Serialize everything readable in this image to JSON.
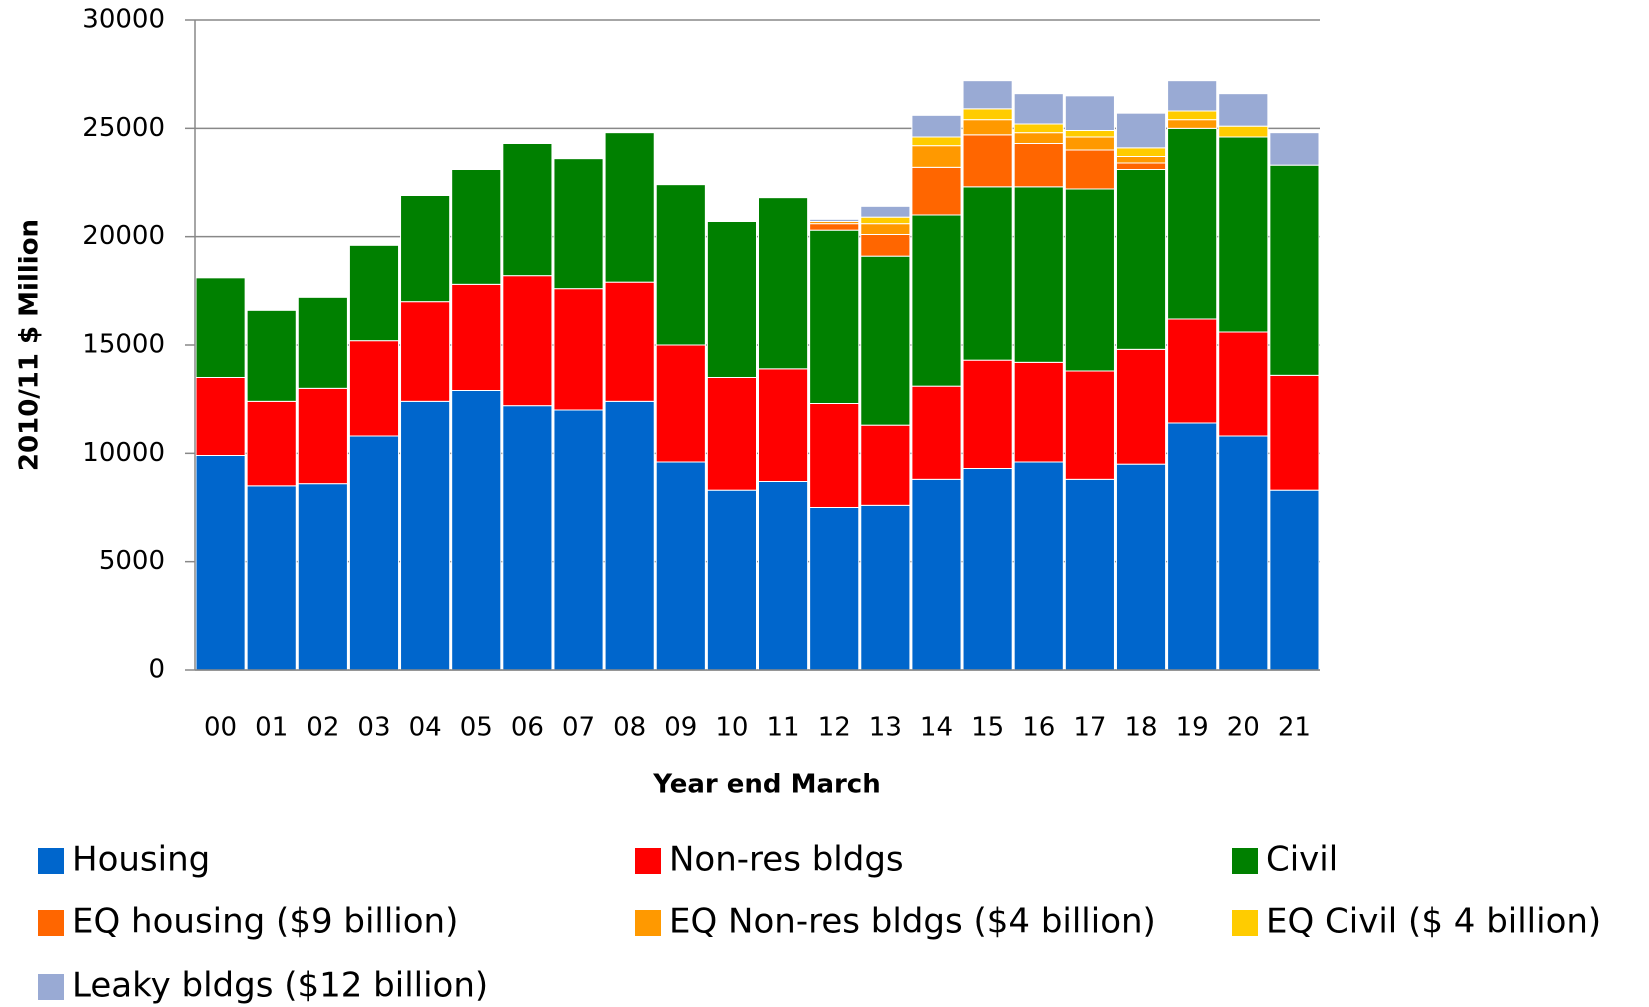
{
  "chart_data": {
    "type": "stacked_bar",
    "y_label": "2010/11 $ Million",
    "x_label": "Year end March",
    "categories": [
      "00",
      "01",
      "02",
      "03",
      "04",
      "05",
      "06",
      "07",
      "08",
      "09",
      "10",
      "11",
      "12",
      "13",
      "14",
      "15",
      "16",
      "17",
      "18",
      "19",
      "20",
      "21"
    ],
    "series": [
      {
        "name": "Housing",
        "color": "#0066cc",
        "values": [
          9900,
          8500,
          8600,
          10800,
          12400,
          12900,
          12200,
          12000,
          12400,
          9600,
          8300,
          8700,
          7500,
          7600,
          8800,
          9300,
          9600,
          8800,
          9500,
          11400,
          10800,
          8300
        ]
      },
      {
        "name": "Non-res bldgs",
        "color": "#ff0000",
        "values": [
          3600,
          3900,
          4400,
          4400,
          4600,
          4900,
          6000,
          5600,
          5500,
          5400,
          5200,
          5200,
          4800,
          3700,
          4300,
          5000,
          4600,
          5000,
          5300,
          4800,
          4800,
          5300
        ]
      },
      {
        "name": "Civil",
        "color": "#008000",
        "values": [
          4600,
          4200,
          4200,
          4400,
          4900,
          5300,
          6100,
          6000,
          6900,
          7400,
          7200,
          7900,
          8000,
          7800,
          7900,
          8000,
          8100,
          8400,
          8300,
          8800,
          9000,
          9700
        ]
      },
      {
        "name": "EQ housing ($9 billion)",
        "color": "#ff6600",
        "values": [
          0,
          0,
          0,
          0,
          0,
          0,
          0,
          0,
          0,
          0,
          0,
          0,
          300,
          1000,
          2200,
          2400,
          2000,
          1800,
          300,
          0,
          0,
          0
        ]
      },
      {
        "name": "EQ Non-res bldgs ($4 billion)",
        "color": "#ff9900",
        "values": [
          0,
          0,
          0,
          0,
          0,
          0,
          0,
          0,
          0,
          0,
          0,
          0,
          100,
          500,
          1000,
          700,
          500,
          600,
          300,
          400,
          0,
          0
        ]
      },
      {
        "name": "EQ Civil ($ 4 billion)",
        "color": "#ffcc00",
        "values": [
          0,
          0,
          0,
          0,
          0,
          0,
          0,
          0,
          0,
          0,
          0,
          0,
          0,
          300,
          400,
          500,
          400,
          300,
          400,
          400,
          500,
          0
        ]
      },
      {
        "name": "Leaky bldgs ($12 billion)",
        "color": "#99aad4",
        "values": [
          0,
          0,
          0,
          0,
          0,
          0,
          0,
          0,
          0,
          0,
          0,
          0,
          100,
          500,
          1000,
          1300,
          1400,
          1600,
          1600,
          1400,
          1500,
          1500
        ]
      }
    ],
    "ylim": [
      0,
      30000
    ],
    "yticks": [
      0,
      5000,
      10000,
      15000,
      20000,
      25000,
      30000
    ],
    "grid": true
  }
}
